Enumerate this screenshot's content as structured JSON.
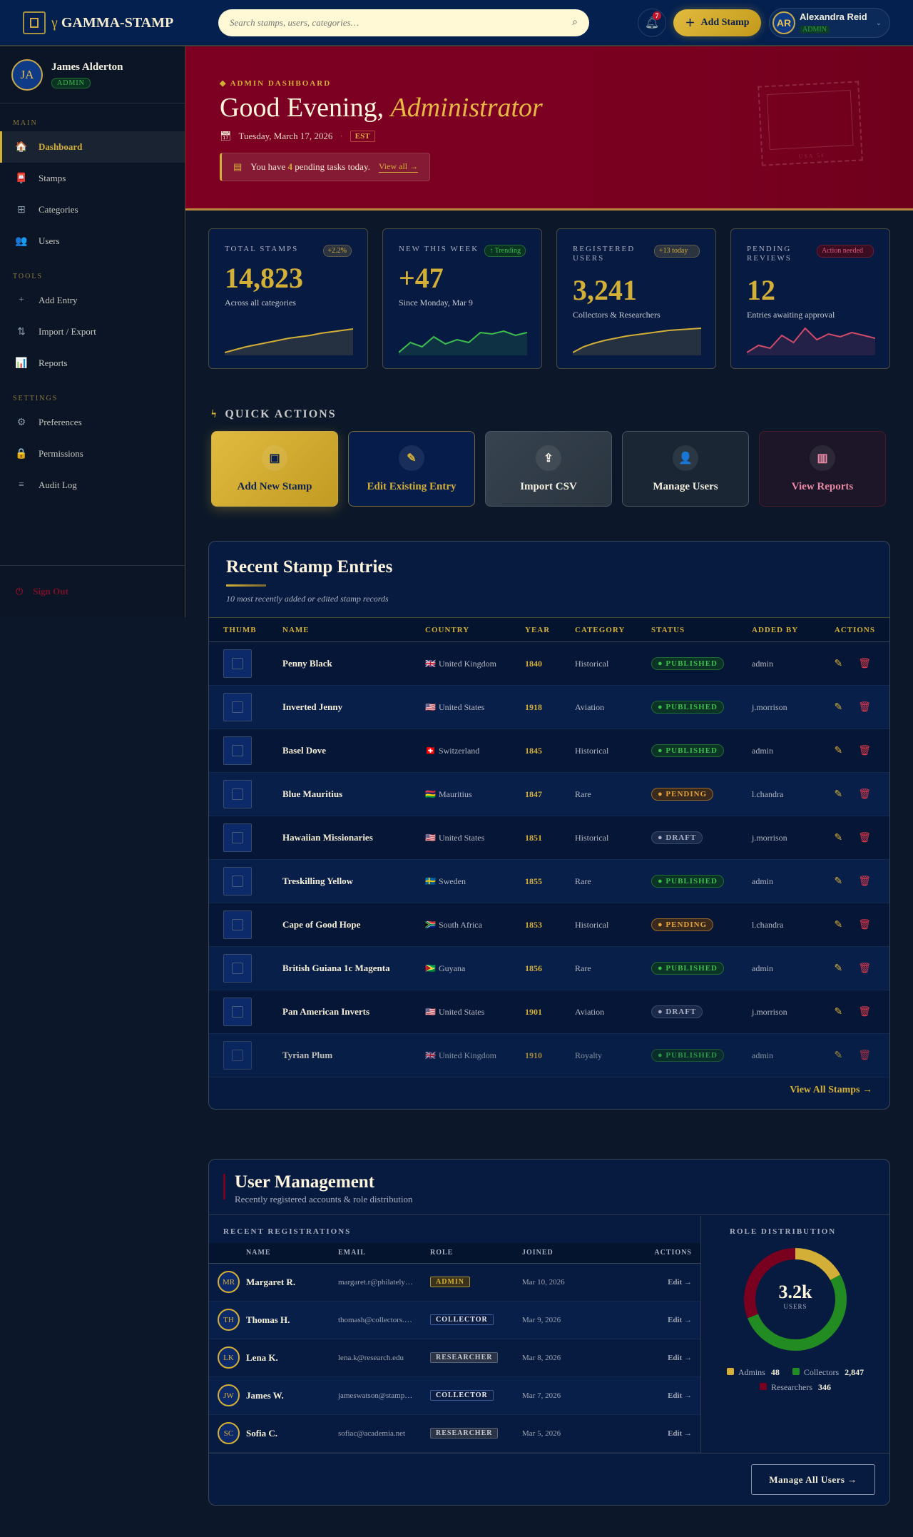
{
  "colors": {
    "accent": "#d4af37",
    "header": "#03204f",
    "hero": "#7a0020",
    "published": "#3cbf4c",
    "pending": "#e8a33a",
    "danger": "#e23a4a"
  },
  "header": {
    "brand_prefix": "γ",
    "brand": "GAMMA-STAMP",
    "search_placeholder": "Search stamps, users, categories…",
    "notifications": "7",
    "add_stamp": "Add Stamp",
    "user_initials": "AR",
    "user_name": "Alexandra Reid",
    "user_role": "ADMIN"
  },
  "sidebar": {
    "initials": "JA",
    "name": "James Alderton",
    "role": "ADMIN",
    "sections": [
      {
        "label": "MAIN",
        "items": [
          {
            "label": "Dashboard",
            "icon": "home-icon",
            "glyph": "🏠",
            "active": true
          },
          {
            "label": "Stamps",
            "icon": "stamp-icon",
            "glyph": "📮"
          },
          {
            "label": "Categories",
            "icon": "grid-icon",
            "glyph": "⊞"
          },
          {
            "label": "Users",
            "icon": "users-icon",
            "glyph": "👥"
          }
        ]
      },
      {
        "label": "TOOLS",
        "items": [
          {
            "label": "Add Entry",
            "icon": "plus-icon",
            "glyph": "+"
          },
          {
            "label": "Import / Export",
            "icon": "swap-icon",
            "glyph": "⇅"
          },
          {
            "label": "Reports",
            "icon": "chart-icon",
            "glyph": "📊"
          }
        ]
      },
      {
        "label": "SETTINGS",
        "items": [
          {
            "label": "Preferences",
            "icon": "gear-icon",
            "glyph": "⚙"
          },
          {
            "label": "Permissions",
            "icon": "lock-icon",
            "glyph": "🔒"
          },
          {
            "label": "Audit Log",
            "icon": "list-icon",
            "glyph": "≡"
          }
        ]
      }
    ],
    "sign_out": "Sign Out"
  },
  "hero": {
    "tag": "ADMIN DASHBOARD",
    "greeting": "Good Evening,",
    "role": "Administrator",
    "date": "Tuesday, March 17, 2026",
    "tz": "EST",
    "note_pre": "You have",
    "note_count": "4",
    "note_post": "pending tasks today.",
    "view_all": "View all →",
    "stamp_text": "USA 5¢"
  },
  "stats": [
    {
      "label": "TOTAL STAMPS",
      "badge": "+2.2%",
      "value": "14,823",
      "sub": "Across all categories",
      "color": "#d4af37",
      "spark": [
        2,
        4,
        6,
        7.5,
        9,
        10.5,
        12,
        13,
        14,
        15.5,
        16.5,
        17.5,
        18.5
      ]
    },
    {
      "label": "NEW THIS WEEK",
      "badge": "↑ Trending",
      "value": "+47",
      "sub": "Since Monday, Mar 9",
      "color": "#3cbf4c",
      "spark": [
        2,
        9,
        6,
        13,
        8,
        11,
        9,
        16,
        15,
        17,
        14,
        16
      ]
    },
    {
      "label": "REGISTERED USERS",
      "badge": "+13 today",
      "value": "3,241",
      "sub": "Collectors & Researchers",
      "color": "#d4af37",
      "spark": [
        2,
        6,
        8.5,
        10.5,
        12,
        13.5,
        14.5,
        15.5,
        16.5,
        17.5,
        18,
        18.5,
        19
      ]
    },
    {
      "label": "PENDING REVIEWS",
      "badge": "Action needed",
      "value": "12",
      "sub": "Entries awaiting approval",
      "color": "#d24a6a",
      "spark": [
        2,
        7,
        5,
        14,
        9,
        19,
        11,
        15,
        13,
        16,
        14,
        12
      ]
    }
  ],
  "quick_actions": {
    "title": "QUICK ACTIONS",
    "items": [
      {
        "label": "Add New Stamp",
        "icon": "chip-icon",
        "glyph": "▣"
      },
      {
        "label": "Edit Existing Entry",
        "icon": "edit-icon",
        "glyph": "✎"
      },
      {
        "label": "Import CSV",
        "icon": "upload-cloud-icon",
        "glyph": "⇪"
      },
      {
        "label": "Manage Users",
        "icon": "users-icon",
        "glyph": "👤"
      },
      {
        "label": "View Reports",
        "icon": "bar-chart-icon",
        "glyph": "▥"
      }
    ]
  },
  "recent": {
    "title": "Recent Stamp Entries",
    "subtitle": "10 most recently added or edited stamp records",
    "columns": [
      "THUMB",
      "NAME",
      "COUNTRY",
      "YEAR",
      "CATEGORY",
      "STATUS",
      "ADDED BY",
      "ACTIONS"
    ],
    "rows": [
      {
        "name": "Penny Black",
        "flag": "🇬🇧",
        "country": "United Kingdom",
        "year": "1840",
        "category": "Historical",
        "status": "PUBLISHED",
        "by": "admin"
      },
      {
        "name": "Inverted Jenny",
        "flag": "🇺🇸",
        "country": "United States",
        "year": "1918",
        "category": "Aviation",
        "status": "PUBLISHED",
        "by": "j.morrison"
      },
      {
        "name": "Basel Dove",
        "flag": "🇨🇭",
        "country": "Switzerland",
        "year": "1845",
        "category": "Historical",
        "status": "PUBLISHED",
        "by": "admin"
      },
      {
        "name": "Blue Mauritius",
        "flag": "🇲🇺",
        "country": "Mauritius",
        "year": "1847",
        "category": "Rare",
        "status": "PENDING",
        "by": "l.chandra"
      },
      {
        "name": "Hawaiian Missionaries",
        "flag": "🇺🇸",
        "country": "United States",
        "year": "1851",
        "category": "Historical",
        "status": "DRAFT",
        "by": "j.morrison"
      },
      {
        "name": "Treskilling Yellow",
        "flag": "🇸🇪",
        "country": "Sweden",
        "year": "1855",
        "category": "Rare",
        "status": "PUBLISHED",
        "by": "admin"
      },
      {
        "name": "Cape of Good Hope",
        "flag": "🇿🇦",
        "country": "South Africa",
        "year": "1853",
        "category": "Historical",
        "status": "PENDING",
        "by": "l.chandra"
      },
      {
        "name": "British Guiana 1c Magenta",
        "flag": "🇬🇾",
        "country": "Guyana",
        "year": "1856",
        "category": "Rare",
        "status": "PUBLISHED",
        "by": "admin"
      },
      {
        "name": "Pan American Inverts",
        "flag": "🇺🇸",
        "country": "United States",
        "year": "1901",
        "category": "Aviation",
        "status": "DRAFT",
        "by": "j.morrison"
      },
      {
        "name": "Tyrian Plum",
        "flag": "🇬🇧",
        "country": "United Kingdom",
        "year": "1910",
        "category": "Royalty",
        "status": "PUBLISHED",
        "by": "admin"
      }
    ],
    "view_all": "View All Stamps →"
  },
  "users": {
    "title": "User Management",
    "subtitle": "Recently registered accounts & role distribution",
    "recent_label": "RECENT REGISTRATIONS",
    "columns": [
      "",
      "NAME",
      "EMAIL",
      "ROLE",
      "JOINED",
      "ACTIONS"
    ],
    "rows": [
      {
        "initials": "MR",
        "name": "Margaret R.",
        "email": "margaret.r@philately…",
        "role": "ADMIN",
        "joined": "Mar 10, 2026",
        "action": "Edit →"
      },
      {
        "initials": "TH",
        "name": "Thomas H.",
        "email": "thomash@collectors.…",
        "role": "COLLECTOR",
        "joined": "Mar 9, 2026",
        "action": "Edit →"
      },
      {
        "initials": "LK",
        "name": "Lena K.",
        "email": "lena.k@research.edu",
        "role": "RESEARCHER",
        "joined": "Mar 8, 2026",
        "action": "Edit →"
      },
      {
        "initials": "JW",
        "name": "James W.",
        "email": "jameswatson@stamp…",
        "role": "COLLECTOR",
        "joined": "Mar 7, 2026",
        "action": "Edit →"
      },
      {
        "initials": "SC",
        "name": "Sofia C.",
        "email": "sofiac@academia.net",
        "role": "RESEARCHER",
        "joined": "Mar 5, 2026",
        "action": "Edit →"
      }
    ],
    "distribution": {
      "label": "ROLE DISTRIBUTION",
      "total": "3.2k",
      "total_label": "USERS",
      "segments": [
        {
          "name": "Admins",
          "value": "48",
          "color": "#d4af37"
        },
        {
          "name": "Collectors",
          "value": "2,847",
          "color": "#228b22"
        },
        {
          "name": "Researchers",
          "value": "346",
          "color": "#7a0020"
        }
      ]
    },
    "manage_all": "Manage All Users →"
  }
}
